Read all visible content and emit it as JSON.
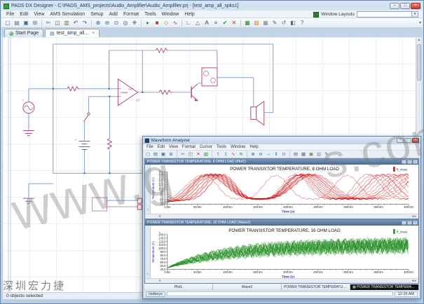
{
  "watermarks": {
    "diag1": "www.g",
    "diag2": "s.com",
    "corner": "深圳宏力捷"
  },
  "dx": {
    "title": "PADS DX Designer - C:\\PADS_AMS_projects\\Audio_Amplifier\\Audio_Amplifier.prj - [test_amp_all_spks1]",
    "window_buttons": [
      "–",
      "□",
      "×"
    ],
    "menu": [
      "File",
      "Edit",
      "View",
      "AMS Simulation",
      "Setup",
      "Add",
      "Format",
      "Tools",
      "Window",
      "Help"
    ],
    "window_layouts_label": "Window Layouts",
    "window_layouts_value": "",
    "toolbar_icons": [
      [
        "new-icon",
        "▢",
        "#56708c"
      ],
      [
        "open-icon",
        "▤",
        "#56708c"
      ],
      [
        "save-icon",
        "▣",
        "#35649a"
      ],
      [
        "print-icon",
        "⊞",
        "#56708c"
      ],
      [
        "sep",
        "",
        ""
      ],
      [
        "cut-icon",
        "✂",
        "#666"
      ],
      [
        "copy-icon",
        "◫",
        "#666"
      ],
      [
        "paste-icon",
        "▥",
        "#8a7b3a"
      ],
      [
        "undo-icon",
        "↶",
        "#35649a"
      ],
      [
        "redo-icon",
        "↷",
        "#35649a"
      ],
      [
        "sep",
        "",
        ""
      ],
      [
        "zoom-in-icon",
        "⊕",
        "#35649a"
      ],
      [
        "zoom-out-icon",
        "⊖",
        "#35649a"
      ],
      [
        "zoom-fit-icon",
        "⊙",
        "#35649a"
      ],
      [
        "zoom-area-icon",
        "◎",
        "#35649a"
      ],
      [
        "pan-icon",
        "✚",
        "#888"
      ],
      [
        "sep",
        "",
        ""
      ],
      [
        "run-sim-icon",
        "▸",
        "#2e8b2e"
      ],
      [
        "stop-sim-icon",
        "■",
        "#b23333"
      ],
      [
        "probe-icon",
        "◇",
        "#b58900"
      ],
      [
        "waveform-icon",
        "∿",
        "#b23333"
      ],
      [
        "sep",
        "",
        ""
      ],
      [
        "add-wire-icon",
        "∟",
        "#35649a"
      ],
      [
        "add-part-icon",
        "△",
        "#a05050"
      ],
      [
        "add-text-icon",
        "A",
        "#333333"
      ],
      [
        "add-bus-icon",
        "≡",
        "#35649a"
      ],
      [
        "check-icon",
        "✔",
        "#2e8b2e"
      ],
      [
        "delete-icon",
        "✕",
        "#c03030"
      ],
      [
        "sep",
        "",
        ""
      ],
      [
        "color-icon",
        "▦",
        "#2e8b2e"
      ],
      [
        "image-icon",
        "▧",
        "#e08020"
      ],
      [
        "grid-icon",
        "▦",
        "#888"
      ],
      [
        "properties-icon",
        "✎",
        "#35649a"
      ],
      [
        "rotate-icon",
        "↺",
        "#666"
      ],
      [
        "mirror-icon",
        "◧",
        "#666"
      ],
      [
        "help-icon",
        "?",
        "#35649a"
      ]
    ],
    "tabs": [
      {
        "label": "Start Page",
        "active": false
      },
      {
        "label": "test_amp_all...",
        "close": "×",
        "active": true
      }
    ],
    "schematic_labels": {
      "opamp": "OPAMP",
      "out": "OUT",
      "ref": "U?",
      "plus": "+"
    },
    "status": "0 objects selected"
  },
  "wave": {
    "title": "Waveform Analyzer",
    "window_buttons": [
      "–",
      "□",
      "×"
    ],
    "menu": [
      "File",
      "Edit",
      "View",
      "Format",
      "Cursor",
      "Tools",
      "Window",
      "Help"
    ],
    "toolbar_icons": [
      [
        "new-icon",
        "▢",
        "#56708c"
      ],
      [
        "open-icon",
        "▤",
        "#56708c"
      ],
      [
        "save-icon",
        "▣",
        "#35649a"
      ],
      [
        "print-icon",
        "⊞",
        "#56708c"
      ],
      [
        "sep",
        "",
        ""
      ],
      [
        "cut-icon",
        "✂",
        "#666"
      ],
      [
        "copy-icon",
        "◫",
        "#666"
      ],
      [
        "delete-icon",
        "✕",
        "#c03030"
      ],
      [
        "chart-icon",
        "▧",
        "#2e8b2e"
      ],
      [
        "sep",
        "",
        ""
      ],
      [
        "cursor1-icon",
        "†",
        "#35649a"
      ],
      [
        "cursor2-icon",
        "‡",
        "#35649a"
      ],
      [
        "measure-icon",
        "∿",
        "#b23333"
      ],
      [
        "overlay-icon",
        "≋",
        "#2e8b2e"
      ],
      [
        "sep",
        "",
        ""
      ],
      [
        "zoom-in-icon",
        "⊕",
        "#35649a"
      ],
      [
        "zoom-out-icon",
        "⊖",
        "#35649a"
      ],
      [
        "zoom-x-icon",
        "⇔",
        "#35649a"
      ],
      [
        "zoom-y-icon",
        "⇕",
        "#35649a"
      ],
      [
        "zoom-fit-icon",
        "⊙",
        "#35649a"
      ],
      [
        "sep",
        "",
        ""
      ],
      [
        "stack-icon",
        "▤",
        "#666"
      ],
      [
        "tile-icon",
        "▦",
        "#666"
      ],
      [
        "legend-icon",
        "▣",
        "#8a7b3a"
      ],
      [
        "grid-icon",
        "▥",
        "#888"
      ],
      [
        "notes-icon",
        "✎",
        "#35649a"
      ]
    ],
    "child_tools": [
      "◔",
      "▫"
    ],
    "mini_x_label": "x",
    "mini_scroll": "◂ ▸",
    "bottom_tabs": [
      "Plot1",
      "Wave2",
      "POWER TRANSISTOR TEMPERATURE, 8 OHM LOAD (Plot1)",
      "POWER TRANSISTOR TEMPERATURE, 16 OHM LOAD (Wave2)"
    ],
    "active_bottom_tab": 3,
    "status_left": "Hotkeys",
    "status_right": "12:26 AM"
  },
  "chart_data": [
    {
      "type": "line",
      "window_title": "POWER TRANSISTOR TEMPERATURE, 8 OHM LOAD (Plot1)",
      "title": "POWER TRANSISTOR TEMPERATURE, 8 OHM LOAD",
      "xlabel": "Time (s)",
      "ylabel": "Temperature (C)",
      "axis_tag": "t1",
      "legend": [
        "R_meas"
      ],
      "legend_position": "top-right",
      "color": "#cc1111",
      "grid": false,
      "x_ticks_ms": [
        0,
        50,
        100,
        150,
        200,
        250,
        300,
        350,
        400
      ],
      "x_tick_labels": [
        "0.0m",
        "50.0m",
        "100.0m",
        "150.0m",
        "200.0m",
        "250.0m",
        "300.0m",
        "350.0m",
        "400.0m"
      ],
      "ylim": [
        40,
        170
      ],
      "y_tick_step": 10,
      "model": {
        "kind": "periodic_humps",
        "n_traces": 16,
        "start_c": 50,
        "valley_c": 62,
        "peak_c_range": [
          157,
          163
        ],
        "first_peak_ms_range": [
          62,
          95
        ],
        "period_ms_range": [
          118,
          185
        ],
        "ripple_c": 2.2,
        "ripple_period_ms": 9
      },
      "summary_points": {
        "x_ms": [
          0,
          30,
          60,
          80,
          100,
          120,
          150,
          180,
          210,
          240,
          280,
          320,
          350,
          380,
          400
        ],
        "upper_c": [
          52,
          105,
          155,
          163,
          160,
          150,
          120,
          150,
          158,
          155,
          135,
          158,
          160,
          145,
          125
        ],
        "lower_c": [
          50,
          85,
          120,
          120,
          90,
          70,
          62,
          65,
          70,
          62,
          62,
          62,
          65,
          62,
          62
        ]
      }
    },
    {
      "type": "line",
      "window_title": "POWER TRANSISTOR TEMPERATURE, 16 OHM LOAD (Wave2)",
      "title": "POWER TRANSISTOR TEMPERATURE, 16 OHM LOAD",
      "xlabel": "Time (s)",
      "ylabel": "Temperature (C)",
      "axis_tag": "t1",
      "legend": [
        "R_meas"
      ],
      "legend_position": "top-right",
      "color": "#1d8a1d",
      "grid": false,
      "x_ticks_ms": [
        0,
        50,
        100,
        150,
        200,
        250,
        300,
        350,
        400
      ],
      "x_tick_labels": [
        "0.0m",
        "50.0m",
        "100.0m",
        "150.0m",
        "200.0m",
        "250.0m",
        "300.0m",
        "350.0m",
        "400.0m"
      ],
      "ylim": [
        40,
        140
      ],
      "y_tick_step": 10,
      "model": {
        "kind": "saturating_band",
        "n_traces": 22,
        "start_c": 45,
        "top_c": 134,
        "bottom_c": 86,
        "mid_c_range": [
          102,
          118
        ],
        "tau_ms_range": [
          80,
          140
        ],
        "osc_period_ms_range": [
          7,
          14
        ],
        "osc_amp_range": [
          4,
          24
        ]
      },
      "summary_points": {
        "x_ms": [
          0,
          50,
          100,
          150,
          200,
          250,
          300,
          350,
          400
        ],
        "upper_c": [
          47,
          75,
          100,
          118,
          125,
          128,
          131,
          133,
          134
        ],
        "lower_c": [
          45,
          60,
          75,
          84,
          87,
          88,
          88,
          88,
          88
        ]
      }
    }
  ]
}
